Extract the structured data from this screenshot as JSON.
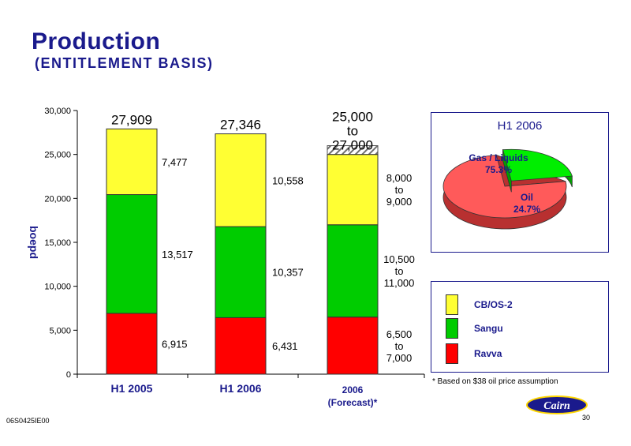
{
  "header": {
    "title": "Production",
    "subtitle": "(ENTITLEMENT BASIS)"
  },
  "footer": {
    "code": "06S0425IE00",
    "page": "30",
    "footnote": "* Based on $38 oil price assumption",
    "logo_text": "Cairn"
  },
  "chart_data": [
    {
      "type": "bar",
      "stacked": true,
      "ylabel": "boepd",
      "ylim": [
        0,
        30000
      ],
      "yticks": [
        "0",
        "5,000",
        "10,000",
        "15,000",
        "20,000",
        "25,000",
        "30,000"
      ],
      "categories": [
        "H1 2005",
        "H1 2006",
        "2006\n(Forecast)*"
      ],
      "series": [
        {
          "name": "Ravva",
          "color": "#ff0000",
          "values": [
            6915,
            6431,
            6500
          ],
          "range_high": [
            null,
            null,
            7000
          ],
          "labels": [
            "6,915",
            "6,431",
            "6,500\nto\n7,000"
          ]
        },
        {
          "name": "Sangu",
          "color": "#00cc00",
          "values": [
            13517,
            10357,
            10500
          ],
          "range_high": [
            null,
            null,
            11000
          ],
          "labels": [
            "13,517",
            "10,357",
            "10,500\nto\n11,000"
          ]
        },
        {
          "name": "CB/OS-2",
          "color": "#ffff33",
          "values": [
            7477,
            10558,
            8000
          ],
          "range_high": [
            null,
            null,
            9000
          ],
          "labels": [
            "7,477",
            "10,558",
            "8,000\nto\n9,000"
          ]
        }
      ],
      "totals": [
        "27,909",
        "27,346",
        "25,000\nto\n27,000"
      ],
      "total_values": [
        27909,
        27346,
        25000
      ]
    },
    {
      "type": "pie",
      "title": "H1 2006",
      "slices": [
        {
          "label": "Gas / Liquids",
          "value": 75.3,
          "value_label": "75.3%",
          "color": "#ff5a5a"
        },
        {
          "label": "Oil",
          "value": 24.7,
          "value_label": "24.7%",
          "color": "#00ee00"
        }
      ]
    }
  ],
  "legend": [
    {
      "label": "CB/OS-2",
      "color": "#ffff33"
    },
    {
      "label": "Sangu",
      "color": "#00cc00"
    },
    {
      "label": "Ravva",
      "color": "#ff0000"
    }
  ]
}
